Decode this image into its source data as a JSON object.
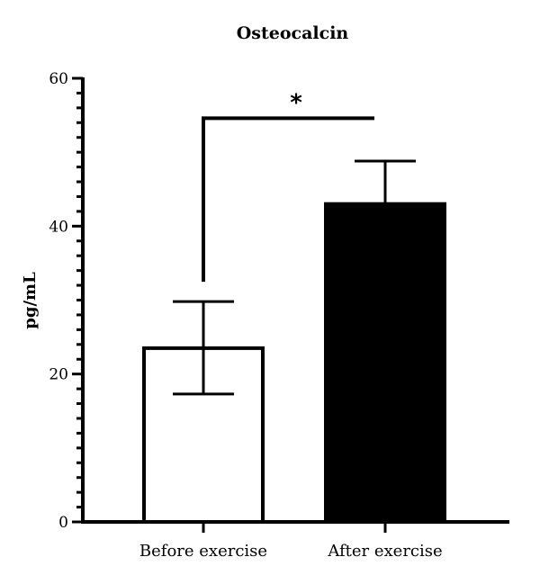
{
  "chart_data": {
    "type": "bar",
    "title": "Osteocalcin",
    "xlabel": "",
    "ylabel": "pg/mL",
    "ylim": [
      0,
      60
    ],
    "yticks": [
      0,
      20,
      40,
      60
    ],
    "minor_tick_step": 2,
    "categories": [
      "Before exercise",
      "After exercise"
    ],
    "values": [
      23.5,
      43.0
    ],
    "error_upper": [
      29.8,
      48.8
    ],
    "error_lower": [
      17.3,
      null
    ],
    "bar_fills": [
      "#ffffff",
      "#000000"
    ],
    "significance": {
      "from": "Before exercise",
      "to": "After exercise",
      "y": 54.6,
      "label": "*"
    },
    "grid": false,
    "legend": "none"
  }
}
